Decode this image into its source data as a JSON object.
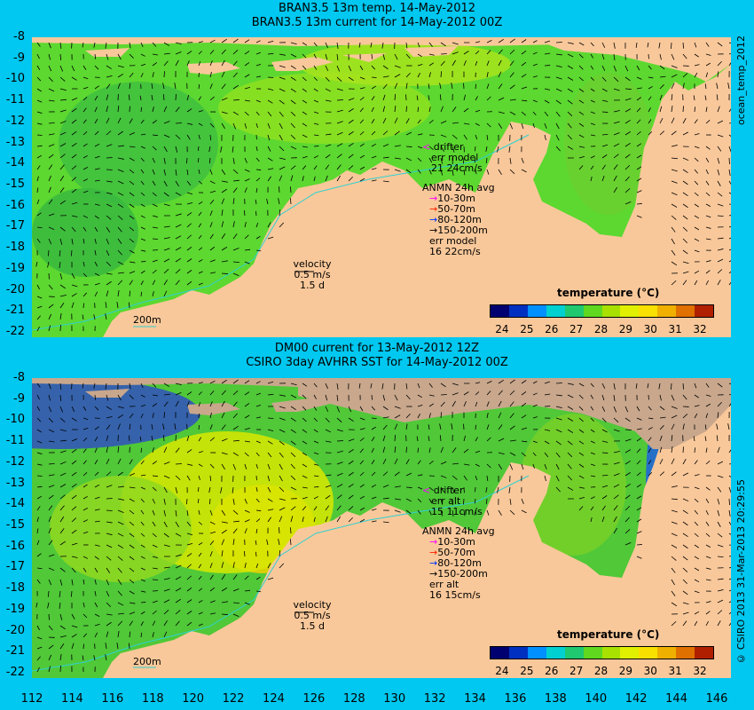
{
  "top": {
    "title1": "BRAN3.5 13m temp. 14-May-2012",
    "title2": "BRAN3.5 13m current for 14-May-2012 00Z",
    "drifter_label": "drifter",
    "err_label": "err model",
    "err_value": "21 24cm/s",
    "anmn_title": "ANMN 24h avg",
    "depths": [
      "10-30m",
      "50-70m",
      "80-120m",
      "150-200m"
    ],
    "err2_label": "err model",
    "err2_value": "16 22cm/s",
    "velocity_label": "velocity",
    "velocity_value": "0.5 m/s",
    "velocity_days": "1.5 d",
    "isobath_label": "200m",
    "cbar_title": "temperature (°C)",
    "cbar_ticks": [
      "24",
      "25",
      "26",
      "27",
      "28",
      "29",
      "30",
      "31",
      "32"
    ],
    "side_label": "ocean_temp_2012"
  },
  "bottom": {
    "title1": "DM00 current for 13-May-2012 12Z",
    "title2": "CSIRO 3day AVHRR SST for 14-May-2012 00Z",
    "drifter_label": "drifter",
    "err_label": "err alt",
    "err_value": "15 11cm/s",
    "anmn_title": "ANMN 24h avg",
    "depths": [
      "10-30m",
      "50-70m",
      "80-120m",
      "150-200m"
    ],
    "err2_label": "err alt",
    "err2_value": "16 15cm/s",
    "velocity_label": "velocity",
    "velocity_value": "0.5 m/s",
    "velocity_days": "1.5 d",
    "isobath_label": "200m",
    "cbar_title": "temperature (°C)",
    "cbar_ticks": [
      "24",
      "25",
      "26",
      "27",
      "28",
      "29",
      "30",
      "31",
      "32"
    ],
    "side_label": "© CSIRO 2013  31-Mar-2013 20:29:55"
  },
  "y_ticks": [
    "-8",
    "-9",
    "-10",
    "-11",
    "-12",
    "-13",
    "-14",
    "-15",
    "-16",
    "-17",
    "-18",
    "-19",
    "-20",
    "-21",
    "-22"
  ],
  "x_ticks": [
    "112",
    "114",
    "116",
    "118",
    "120",
    "122",
    "124",
    "126",
    "128",
    "130",
    "132",
    "134",
    "136",
    "138",
    "140",
    "142",
    "144",
    "146"
  ],
  "colors": {
    "background": "#00c8f0",
    "land": "#f9c89a",
    "land_grey": "#c8a78c",
    "drifter": "#ff00ff",
    "depth_colors": [
      "#ff00ff",
      "#ff2000",
      "#0030ff",
      "#000000"
    ],
    "colorbar": [
      "#000070",
      "#0030c0",
      "#0090ff",
      "#00d0d0",
      "#20c870",
      "#60d820",
      "#a8e000",
      "#e0f000",
      "#f8e000",
      "#f0b000",
      "#e07000",
      "#b02000"
    ]
  }
}
